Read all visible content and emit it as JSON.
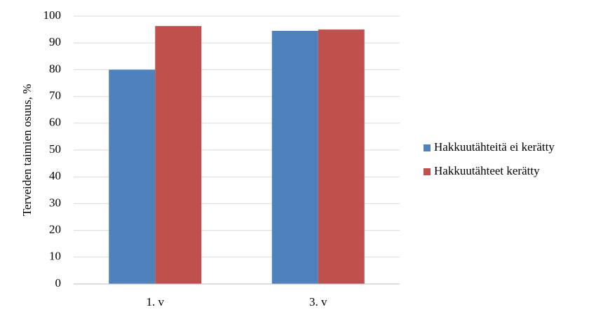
{
  "chart_data": {
    "type": "bar",
    "y_label": "Terveiden taimien osuus, %",
    "categories": [
      "1. v",
      "3. v"
    ],
    "series": [
      {
        "name": "Hakkuutähteitä ei kerätty",
        "color": "#4f81bd",
        "values": [
          80,
          94.5
        ]
      },
      {
        "name": "Hakkuutähteet kerätty",
        "color": "#c0504d",
        "values": [
          96.3,
          95
        ]
      }
    ],
    "ylim": [
      0,
      100
    ],
    "yticks": [
      0,
      10,
      20,
      30,
      40,
      50,
      60,
      70,
      80,
      90,
      100
    ],
    "grid": true,
    "legend": "right"
  }
}
